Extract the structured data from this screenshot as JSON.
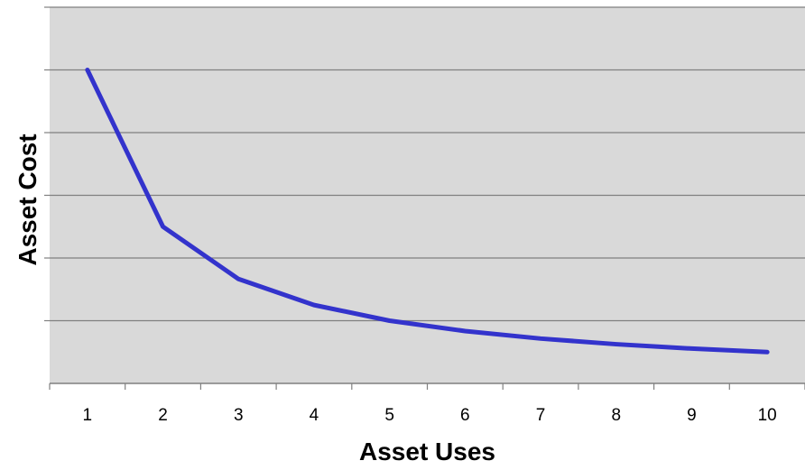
{
  "chart_data": {
    "type": "line",
    "x": [
      1,
      2,
      3,
      4,
      5,
      6,
      7,
      8,
      9,
      10
    ],
    "x_tick_labels": [
      "1",
      "2",
      "3",
      "4",
      "5",
      "6",
      "7",
      "8",
      "9",
      "10"
    ],
    "series": [
      {
        "values": [
          1,
          0.5,
          0.333,
          0.25,
          0.2,
          0.167,
          0.143,
          0.125,
          0.111,
          0.1
        ]
      }
    ],
    "xlabel": "Asset Uses",
    "ylabel": "Asset Cost",
    "ylim": [
      0,
      1.2
    ],
    "y_gridline_step": 0.2,
    "y_tick_labels_shown": false,
    "grid": true,
    "plot_background": "#d9d9d9",
    "gridline_color": "#808080",
    "line_color": "#3333cc"
  }
}
